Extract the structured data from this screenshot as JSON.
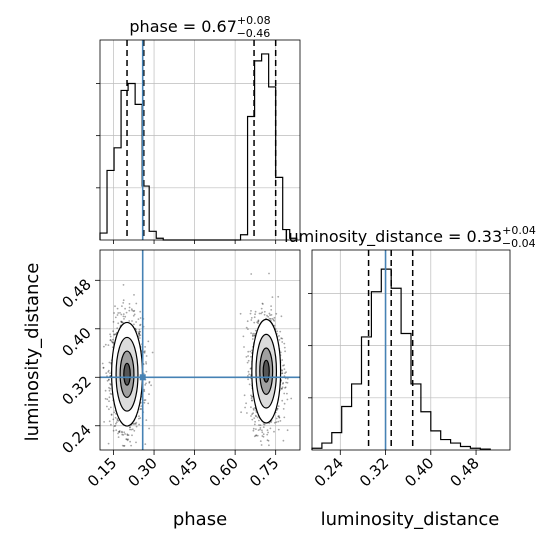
{
  "chart_data": [
    {
      "type": "histogram",
      "panel": "phase-marginal",
      "title": {
        "base": "phase = 0.67",
        "sup": "+0.08",
        "sub": "−0.46"
      },
      "xlim": [
        0.1,
        0.84
      ],
      "grid": true,
      "bin_edges": [
        0.1,
        0.126,
        0.152,
        0.178,
        0.204,
        0.23,
        0.256,
        0.282,
        0.308,
        0.334,
        0.36,
        0.386,
        0.412,
        0.438,
        0.464,
        0.49,
        0.516,
        0.542,
        0.568,
        0.594,
        0.62,
        0.646,
        0.672,
        0.698,
        0.724,
        0.75,
        0.776,
        0.802,
        0.828
      ],
      "counts": [
        0.04,
        0.4,
        0.53,
        0.86,
        0.9,
        0.78,
        0.31,
        0.05,
        0.01,
        0,
        0,
        0,
        0,
        0,
        0,
        0,
        0,
        0,
        0,
        0,
        0.03,
        0.71,
        1.03,
        1.07,
        0.88,
        0.36,
        0.06,
        0.01
      ],
      "quantile_lines": [
        0.2,
        0.262,
        0.67,
        0.75
      ],
      "truth": 0.258
    },
    {
      "type": "scatter-contour",
      "panel": "phase-vs-luminosity_distance",
      "xlabel": "phase",
      "ylabel": "luminosity_distance",
      "xlim": [
        0.1,
        0.84
      ],
      "ylim": [
        0.2,
        0.53
      ],
      "xticks": [
        "0.15",
        "0.30",
        "0.45",
        "0.60",
        "0.75"
      ],
      "yticks": [
        "0.24",
        "0.32",
        "0.40",
        "0.48"
      ],
      "grid": true,
      "clusters": [
        {
          "center": [
            0.2,
            0.325
          ],
          "spread": [
            0.03,
            0.045
          ]
        },
        {
          "center": [
            0.715,
            0.33
          ],
          "spread": [
            0.028,
            0.045
          ]
        }
      ],
      "truth": [
        0.258,
        0.32
      ]
    },
    {
      "type": "histogram",
      "panel": "luminosity_distance-marginal",
      "title": {
        "base": "luminosity_distance = 0.33",
        "sup": "+0.04",
        "sub": "−0.04"
      },
      "xlabel": "luminosity_distance",
      "xlim": [
        0.19,
        0.54
      ],
      "xticks": [
        "0.24",
        "0.32",
        "0.40",
        "0.48"
      ],
      "grid": true,
      "bin_edges": [
        0.19,
        0.2075,
        0.225,
        0.2425,
        0.26,
        0.2775,
        0.295,
        0.3125,
        0.33,
        0.3475,
        0.365,
        0.3825,
        0.4,
        0.4175,
        0.435,
        0.4525,
        0.47,
        0.4875,
        0.505
      ],
      "counts": [
        0.01,
        0.04,
        0.1,
        0.25,
        0.38,
        0.65,
        0.91,
        1.04,
        0.93,
        0.67,
        0.38,
        0.22,
        0.11,
        0.06,
        0.04,
        0.02,
        0.01,
        0.005
      ],
      "quantile_lines": [
        0.29,
        0.33,
        0.368
      ],
      "truth": 0.32
    }
  ]
}
